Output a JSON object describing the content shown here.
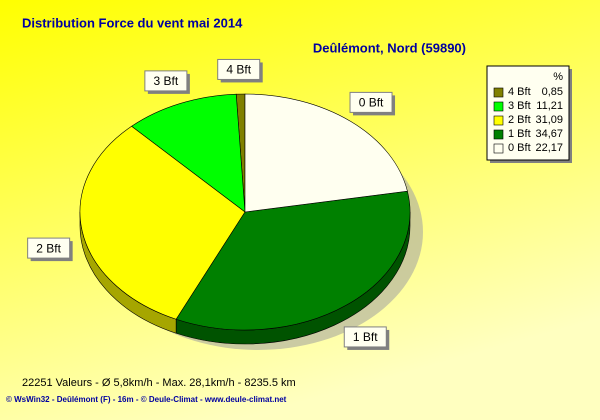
{
  "chart_data": {
    "type": "pie",
    "title": "Distribution Force du vent  mai 2014",
    "subtitle": "Deûlémont, Nord (59890)",
    "legend_header": "%",
    "categories": [
      "4 Bft",
      "3 Bft",
      "2 Bft",
      "1 Bft",
      "0 Bft"
    ],
    "values": [
      0.85,
      11.21,
      31.09,
      34.67,
      22.17
    ],
    "value_labels": [
      "0,85",
      "11,21",
      "31,09",
      "34,67",
      "22,17"
    ],
    "colors": [
      "#808000",
      "#00ff00",
      "#ffff00",
      "#008000",
      "#fffff0"
    ],
    "legend": "top-right",
    "footer": "22251 Valeurs   -   Ø 5,8km/h  -  Max. 28,1km/h  -   8235.5 km",
    "copyright": "© WsWin32  -  Deûlémont (F) - 16m  -  © Deule-Climat - www.deule-climat.net"
  }
}
